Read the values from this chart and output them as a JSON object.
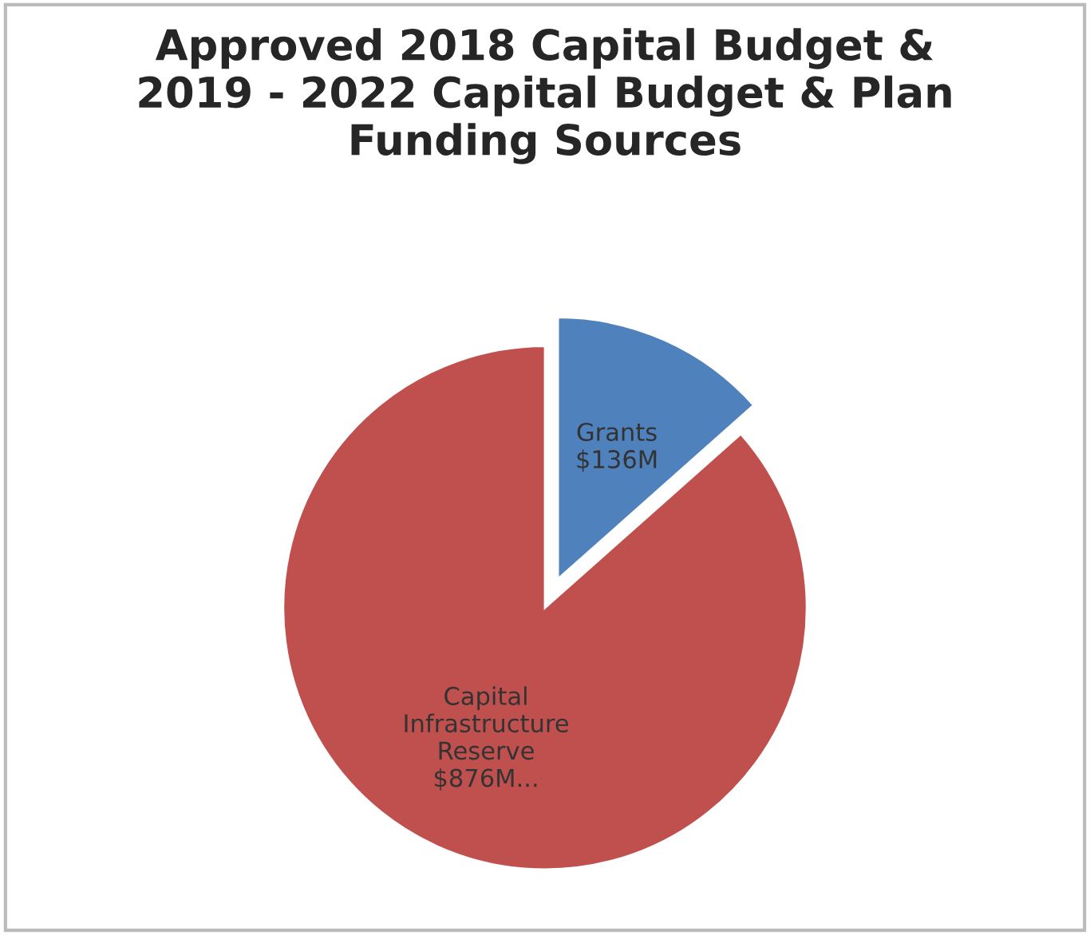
{
  "chart_data": {
    "type": "pie",
    "title": "Approved 2018 Capital Budget &\n2019 - 2022 Capital Budget & Plan\nFunding Sources",
    "categories": [
      "Grants",
      "Capital Infrastructure Reserve"
    ],
    "values": [
      136,
      876
    ],
    "value_labels": [
      "$136M",
      "$876M..."
    ],
    "colors": [
      "#4f81bd",
      "#c0504d"
    ]
  }
}
